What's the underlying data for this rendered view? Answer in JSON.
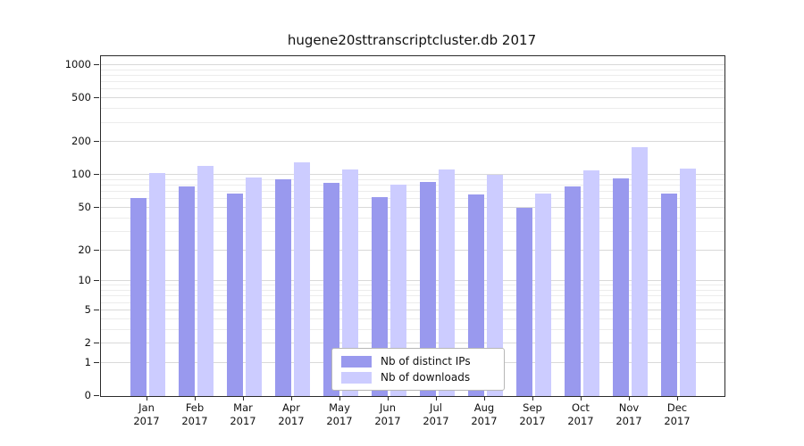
{
  "title": "hugene20sttranscriptcluster.db 2017",
  "chart_data": {
    "type": "bar",
    "title": "hugene20sttranscriptcluster.db 2017",
    "xlabel": "",
    "ylabel": "",
    "scale": "log10(value+1)",
    "grid": true,
    "legend_position": "bottom-center-inside",
    "year": "2017",
    "categories": [
      "Jan",
      "Feb",
      "Mar",
      "Apr",
      "May",
      "Jun",
      "Jul",
      "Aug",
      "Sep",
      "Oct",
      "Nov",
      "Dec"
    ],
    "series": [
      {
        "name": "Nb of distinct IPs",
        "color": "#9999ee",
        "values": [
          62,
          78,
          68,
          92,
          85,
          63,
          87,
          66,
          50,
          78,
          93,
          67
        ]
      },
      {
        "name": "Nb of downloads",
        "color": "#ccccff",
        "values": [
          105,
          120,
          95,
          130,
          112,
          82,
          112,
          100,
          68,
          110,
          180,
          115
        ]
      }
    ],
    "y_ticks": [
      0,
      1,
      2,
      5,
      10,
      20,
      50,
      100,
      200,
      500,
      1000
    ],
    "ylim": [
      0,
      1000
    ]
  }
}
